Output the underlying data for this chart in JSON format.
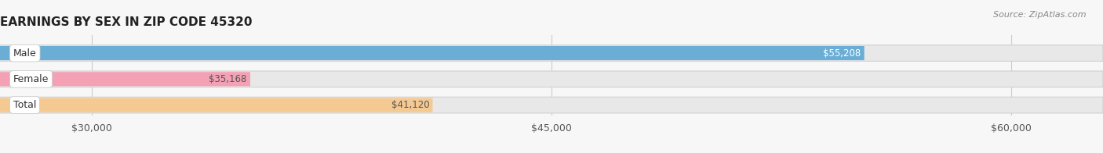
{
  "title": "EARNINGS BY SEX IN ZIP CODE 45320",
  "source": "Source: ZipAtlas.com",
  "categories": [
    "Male",
    "Female",
    "Total"
  ],
  "values": [
    55208,
    35168,
    41120
  ],
  "bar_colors": [
    "#6aaed6",
    "#f4a0b5",
    "#f5c992"
  ],
  "label_text_colors": [
    "#ffffff",
    "#555555",
    "#555555"
  ],
  "bar_labels": [
    "$55,208",
    "$35,168",
    "$41,120"
  ],
  "x_min": 27000,
  "x_max": 63000,
  "x_ticks": [
    30000,
    45000,
    60000
  ],
  "x_tick_labels": [
    "$30,000",
    "$45,000",
    "$60,000"
  ],
  "bg_color": "#f7f7f7",
  "bar_bg_color": "#e8e8e8",
  "bar_outline_color": "#d0d0d0",
  "title_fontsize": 11,
  "label_fontsize": 9,
  "tick_fontsize": 9,
  "value_label_fontsize": 8.5
}
